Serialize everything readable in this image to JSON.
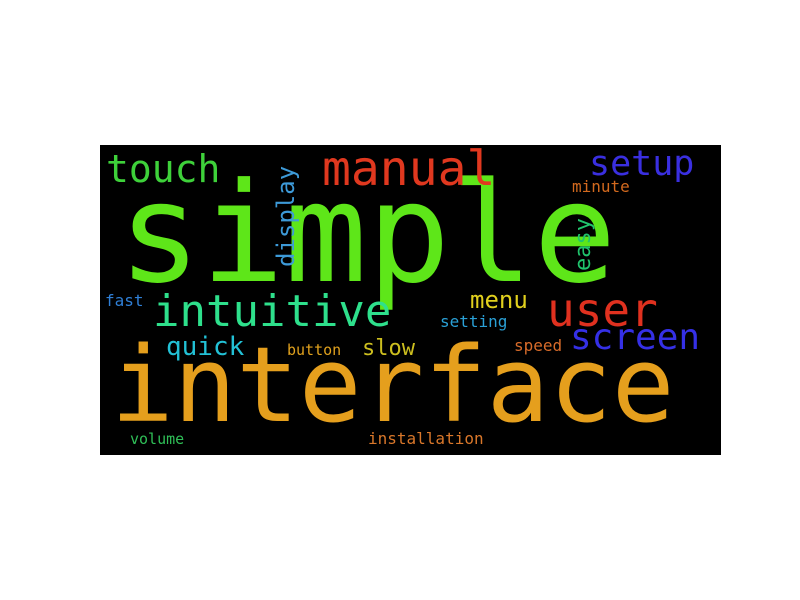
{
  "words": {
    "simple": {
      "text": "simple",
      "color": "#5ee619"
    },
    "interface": {
      "text": "interface",
      "color": "#e59f1d"
    },
    "manual": {
      "text": "manual",
      "color": "#e0381f"
    },
    "touch": {
      "text": "touch",
      "color": "#3ed13a"
    },
    "setup": {
      "text": "setup",
      "color": "#3a2fe0"
    },
    "intuitive": {
      "text": "intuitive",
      "color": "#2ee08c"
    },
    "user": {
      "text": "user",
      "color": "#e0311f"
    },
    "screen": {
      "text": "screen",
      "color": "#3530e6"
    },
    "display": {
      "text": "display",
      "color": "#3d9ad8"
    },
    "easy": {
      "text": "easy",
      "color": "#20c46c"
    },
    "menu": {
      "text": "menu",
      "color": "#e0cf1d"
    },
    "minute": {
      "text": "minute",
      "color": "#d2691e"
    },
    "quick": {
      "text": "quick",
      "color": "#22c1d6"
    },
    "slow": {
      "text": "slow",
      "color": "#cdbf1f"
    },
    "button": {
      "text": "button",
      "color": "#e0a11d"
    },
    "fast": {
      "text": "fast",
      "color": "#2f7fd6"
    },
    "setting": {
      "text": "setting",
      "color": "#2aa0d6"
    },
    "speed": {
      "text": "speed",
      "color": "#d76b2a"
    },
    "volume": {
      "text": "volume",
      "color": "#2fbf57"
    },
    "installation": {
      "text": "installation",
      "color": "#d9772a"
    }
  }
}
